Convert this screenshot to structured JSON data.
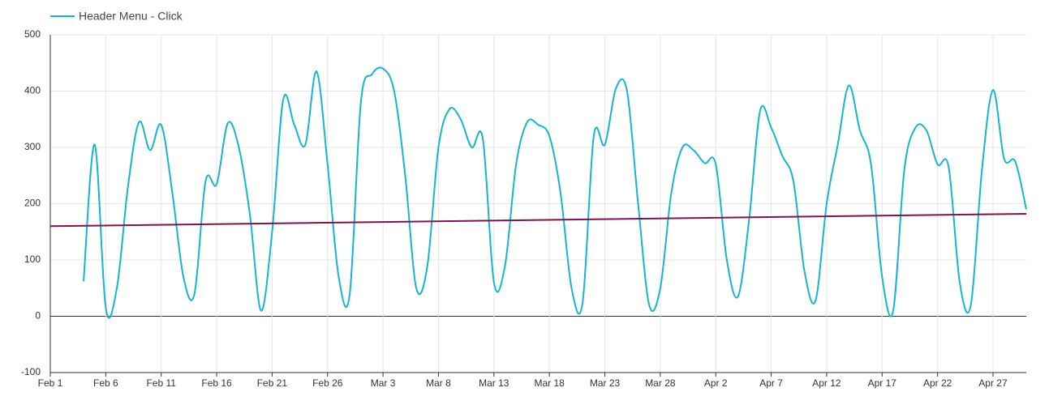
{
  "chart_data": {
    "type": "line",
    "xlim": [
      0,
      88
    ],
    "xticks": [
      {
        "value": 0,
        "label": "Feb 1"
      },
      {
        "value": 5,
        "label": "Feb 6"
      },
      {
        "value": 10,
        "label": "Feb 11"
      },
      {
        "value": 15,
        "label": "Feb 16"
      },
      {
        "value": 20,
        "label": "Feb 21"
      },
      {
        "value": 25,
        "label": "Feb 26"
      },
      {
        "value": 30,
        "label": "Mar 3"
      },
      {
        "value": 35,
        "label": "Mar 8"
      },
      {
        "value": 40,
        "label": "Mar 13"
      },
      {
        "value": 45,
        "label": "Mar 18"
      },
      {
        "value": 50,
        "label": "Mar 23"
      },
      {
        "value": 55,
        "label": "Mar 28"
      },
      {
        "value": 60,
        "label": "Apr 2"
      },
      {
        "value": 65,
        "label": "Apr 7"
      },
      {
        "value": 70,
        "label": "Apr 12"
      },
      {
        "value": 75,
        "label": "Apr 17"
      },
      {
        "value": 80,
        "label": "Apr 22"
      },
      {
        "value": 85,
        "label": "Apr 27"
      }
    ],
    "ylim": [
      -100,
      500
    ],
    "yticks": [
      -100,
      0,
      100,
      200,
      300,
      400,
      500
    ],
    "grid": true,
    "legend": "top-left",
    "series": [
      {
        "name": "Header Menu - Click",
        "color": "#17b6cc",
        "x": [
          3,
          4,
          5,
          6,
          7,
          8,
          9,
          10,
          11,
          12,
          13,
          14,
          15,
          16,
          17,
          18,
          19,
          20,
          21,
          22,
          23,
          24,
          25,
          26,
          27,
          28,
          29,
          30,
          31,
          32,
          33,
          34,
          35,
          36,
          37,
          38,
          39,
          40,
          41,
          42,
          43,
          44,
          45,
          46,
          47,
          48,
          49,
          50,
          51,
          52,
          53,
          54,
          55,
          56,
          57,
          58,
          59,
          60,
          61,
          62,
          63,
          64,
          65,
          66,
          67,
          68,
          69,
          70,
          71,
          72,
          73,
          74,
          75,
          76,
          77,
          78,
          79,
          80,
          81,
          82,
          83,
          84,
          85,
          86,
          87,
          88
        ],
        "values": [
          62,
          305,
          15,
          50,
          230,
          345,
          295,
          340,
          220,
          70,
          40,
          240,
          235,
          343,
          300,
          180,
          10,
          150,
          385,
          340,
          305,
          435,
          270,
          70,
          40,
          380,
          430,
          440,
          400,
          250,
          50,
          90,
          300,
          368,
          350,
          300,
          315,
          60,
          90,
          270,
          345,
          340,
          320,
          220,
          50,
          25,
          320,
          305,
          405,
          400,
          200,
          20,
          50,
          220,
          300,
          295,
          272,
          270,
          100,
          35,
          170,
          365,
          335,
          285,
          240,
          80,
          28,
          200,
          305,
          410,
          330,
          270,
          70,
          10,
          260,
          335,
          330,
          270,
          265,
          60,
          20,
          260,
          402,
          280,
          275,
          190
        ]
      },
      {
        "color": "#7a1550",
        "x": [
          0,
          88
        ],
        "values": [
          160,
          182
        ]
      }
    ]
  }
}
